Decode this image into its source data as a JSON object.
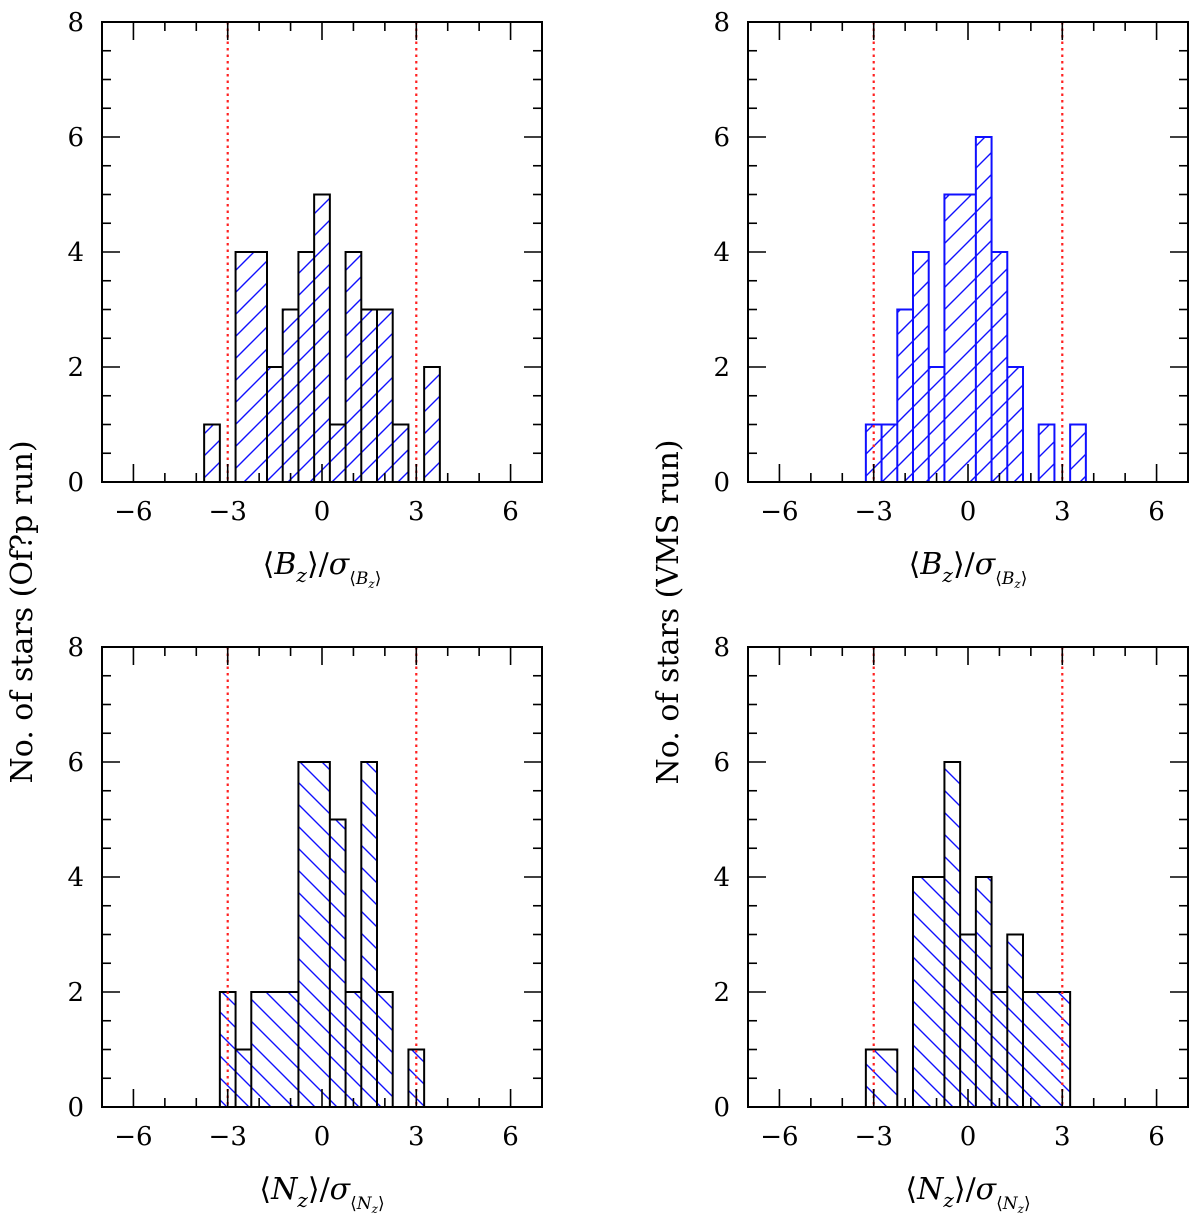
{
  "colors": {
    "hist": "#1010ff",
    "outline": "#000000",
    "threshold": "#ff2020",
    "frame": "#000000"
  },
  "chart_data": [
    {
      "type": "bar",
      "panel": "top-left",
      "column": "Of?p run",
      "xlabel": "⟨B_z⟩/σ_⟨B_z⟩",
      "x_var": "B",
      "sub": "z",
      "ylabel": "No. of stars (Of?p run)",
      "xlim": [
        -7,
        7
      ],
      "ylim": [
        0,
        8
      ],
      "xticks": [
        "−6",
        "−3",
        "0",
        "3",
        "6"
      ],
      "xtick_values": [
        -6,
        -3,
        0,
        3,
        6
      ],
      "yticks": [
        "0",
        "2",
        "4",
        "6",
        "8"
      ],
      "ytick_values": [
        0,
        2,
        4,
        6,
        8
      ],
      "hatch": "forward",
      "outline": true,
      "bin_edges": [
        -7,
        7
      ],
      "bin_width": 0.5,
      "bins": [
        {
          "x0": -3.75,
          "x1": -3.25,
          "count": 1
        },
        {
          "x0": -2.75,
          "x1": -1.75,
          "count": 4
        },
        {
          "x0": -1.75,
          "x1": -1.25,
          "count": 2
        },
        {
          "x0": -1.25,
          "x1": -0.75,
          "count": 3
        },
        {
          "x0": -0.75,
          "x1": -0.25,
          "count": 4
        },
        {
          "x0": -0.25,
          "x1": 0.25,
          "count": 5
        },
        {
          "x0": 0.25,
          "x1": 0.75,
          "count": 1
        },
        {
          "x0": 0.75,
          "x1": 1.25,
          "count": 4
        },
        {
          "x0": 1.25,
          "x1": 1.75,
          "count": 3
        },
        {
          "x0": 1.75,
          "x1": 2.25,
          "count": 3
        },
        {
          "x0": 2.25,
          "x1": 2.75,
          "count": 1
        },
        {
          "x0": 3.25,
          "x1": 3.75,
          "count": 2
        }
      ],
      "threshold_lines": [
        -3,
        3
      ]
    },
    {
      "type": "bar",
      "panel": "top-right",
      "column": "VMS run",
      "xlabel": "⟨B_z⟩/σ_⟨B_z⟩",
      "x_var": "B",
      "sub": "z",
      "ylabel": "No. of stars (VMS run)",
      "xlim": [
        -7,
        7
      ],
      "ylim": [
        0,
        8
      ],
      "xticks": [
        "−6",
        "−3",
        "0",
        "3",
        "6"
      ],
      "xtick_values": [
        -6,
        -3,
        0,
        3,
        6
      ],
      "yticks": [
        "0",
        "2",
        "4",
        "6",
        "8"
      ],
      "ytick_values": [
        0,
        2,
        4,
        6,
        8
      ],
      "hatch": "forward",
      "outline": false,
      "bins": [
        {
          "x0": -3.25,
          "x1": -2.75,
          "count": 1
        },
        {
          "x0": -2.75,
          "x1": -2.25,
          "count": 1
        },
        {
          "x0": -2.25,
          "x1": -1.75,
          "count": 3
        },
        {
          "x0": -1.75,
          "x1": -1.25,
          "count": 4
        },
        {
          "x0": -1.25,
          "x1": -0.75,
          "count": 2
        },
        {
          "x0": -0.75,
          "x1": 0.25,
          "count": 5
        },
        {
          "x0": 0.25,
          "x1": 0.75,
          "count": 6
        },
        {
          "x0": 0.75,
          "x1": 1.25,
          "count": 4
        },
        {
          "x0": 1.25,
          "x1": 1.75,
          "count": 2
        },
        {
          "x0": 2.25,
          "x1": 2.75,
          "count": 1
        },
        {
          "x0": 3.25,
          "x1": 3.75,
          "count": 1
        }
      ],
      "threshold_lines": [
        -3,
        3
      ]
    },
    {
      "type": "bar",
      "panel": "bottom-left",
      "column": "Of?p run",
      "xlabel": "⟨N_z⟩/σ_⟨N_z⟩",
      "x_var": "N",
      "sub": "z",
      "ylabel": "No. of stars (Of?p run)",
      "xlim": [
        -7,
        7
      ],
      "ylim": [
        0,
        8
      ],
      "xticks": [
        "−6",
        "−3",
        "0",
        "3",
        "6"
      ],
      "xtick_values": [
        -6,
        -3,
        0,
        3,
        6
      ],
      "yticks": [
        "0",
        "2",
        "4",
        "6",
        "8"
      ],
      "ytick_values": [
        0,
        2,
        4,
        6,
        8
      ],
      "hatch": "backward",
      "outline": true,
      "bins": [
        {
          "x0": -3.25,
          "x1": -2.75,
          "count": 2
        },
        {
          "x0": -2.75,
          "x1": -2.25,
          "count": 1
        },
        {
          "x0": -2.25,
          "x1": -0.75,
          "count": 2
        },
        {
          "x0": -0.75,
          "x1": 0.25,
          "count": 6
        },
        {
          "x0": 0.25,
          "x1": 0.75,
          "count": 5
        },
        {
          "x0": 0.75,
          "x1": 1.25,
          "count": 2
        },
        {
          "x0": 1.25,
          "x1": 1.75,
          "count": 6
        },
        {
          "x0": 1.75,
          "x1": 2.25,
          "count": 2
        },
        {
          "x0": 2.75,
          "x1": 3.25,
          "count": 1
        }
      ],
      "threshold_lines": [
        -3,
        3
      ]
    },
    {
      "type": "bar",
      "panel": "bottom-right",
      "column": "VMS run",
      "xlabel": "⟨N_z⟩/σ_⟨N_z⟩",
      "x_var": "N",
      "sub": "z",
      "ylabel": "No. of stars (VMS run)",
      "xlim": [
        -7,
        7
      ],
      "ylim": [
        0,
        8
      ],
      "xticks": [
        "−6",
        "−3",
        "0",
        "3",
        "6"
      ],
      "xtick_values": [
        -6,
        -3,
        0,
        3,
        6
      ],
      "yticks": [
        "0",
        "2",
        "4",
        "6",
        "8"
      ],
      "ytick_values": [
        0,
        2,
        4,
        6,
        8
      ],
      "hatch": "backward",
      "outline": true,
      "bins": [
        {
          "x0": -3.25,
          "x1": -2.25,
          "count": 1
        },
        {
          "x0": -1.75,
          "x1": -0.75,
          "count": 4
        },
        {
          "x0": -0.75,
          "x1": -0.25,
          "count": 6
        },
        {
          "x0": -0.25,
          "x1": 0.25,
          "count": 3
        },
        {
          "x0": 0.25,
          "x1": 0.75,
          "count": 4
        },
        {
          "x0": 0.75,
          "x1": 1.25,
          "count": 2
        },
        {
          "x0": 1.25,
          "x1": 1.75,
          "count": 3
        },
        {
          "x0": 1.75,
          "x1": 3.25,
          "count": 2
        }
      ],
      "threshold_lines": [
        -3,
        3
      ]
    }
  ]
}
